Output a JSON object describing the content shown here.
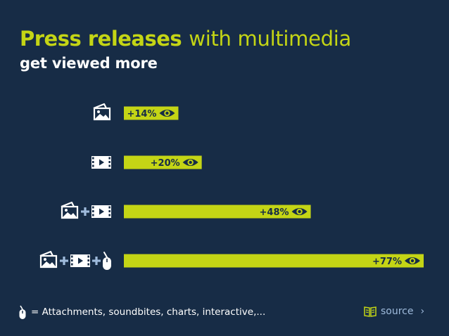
{
  "header": {
    "title_bold": "Press releases",
    "title_light": "with multimedia",
    "subtitle": "get viewed more"
  },
  "colors": {
    "background": "#172c46",
    "bar": "#c4d515",
    "icon": "#ffffff",
    "plus": "#9fbbdc",
    "label_text": "#172c46"
  },
  "chart_data": {
    "type": "bar",
    "orientation": "horizontal",
    "categories": [
      "photo",
      "video",
      "photo + video",
      "photo + video + interactive"
    ],
    "category_icons": [
      [
        "photo-icon"
      ],
      [
        "video-icon"
      ],
      [
        "photo-icon",
        "video-icon"
      ],
      [
        "photo-icon",
        "video-icon",
        "mouse-icon"
      ]
    ],
    "values": [
      14,
      20,
      48,
      77
    ],
    "labels": [
      "+14%",
      "+20%",
      "+48%",
      "+77%"
    ],
    "label_icon": "eye-icon",
    "unit": "%",
    "xlim": [
      0,
      80
    ],
    "grid": false,
    "title": "",
    "xlabel": "",
    "ylabel": ""
  },
  "footer": {
    "note": "= Attachments, soundbites, charts, interactive,...",
    "note_icon": "mouse-icon",
    "source_icon": "book-icon",
    "source_label": "source",
    "source_chevron": "›"
  }
}
